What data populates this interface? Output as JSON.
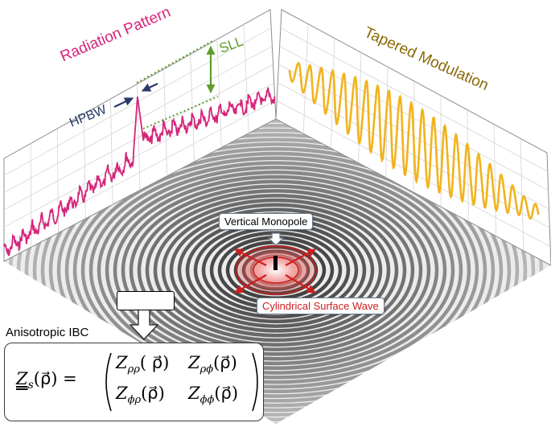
{
  "titles": {
    "radiation_pattern": "Radiation Pattern",
    "tapered_modulation": "Tapered Modulation"
  },
  "annotations": {
    "hpbw": "HPBW",
    "sll": "SLL",
    "vertical_monopole": "Vertical Monopole",
    "cylindrical_surface_wave": "Cylindrical Surface Wave",
    "anisotropic_ibc": "Anisotropic IBC"
  },
  "equation": {
    "lhs_symbol": "Z",
    "lhs_subscript": "s",
    "lhs_argument": "(ρ⃗) =",
    "matrix": {
      "r1c1": "Z",
      "r1c1_sub": "ρρ",
      "r1c1_arg": "( ρ⃗)",
      "r1c2": "Z",
      "r1c2_sub": "ρϕ",
      "r1c2_arg": "(ρ⃗)",
      "r2c1": "Z",
      "r2c1_sub": "ϕρ",
      "r2c1_arg": "(ρ⃗)",
      "r2c2": "Z",
      "r2c2_sub": "ϕϕ",
      "r2c2_arg": "(ρ⃗)"
    }
  },
  "colors": {
    "radiation_curve": "#d6247a",
    "modulation_curve": "#f2b31d",
    "hpbw": "#2a3a6a",
    "sll": "#5d9d2a",
    "surface_wave": "#cc1e1e",
    "tapered_title": "#8a6a08"
  }
}
